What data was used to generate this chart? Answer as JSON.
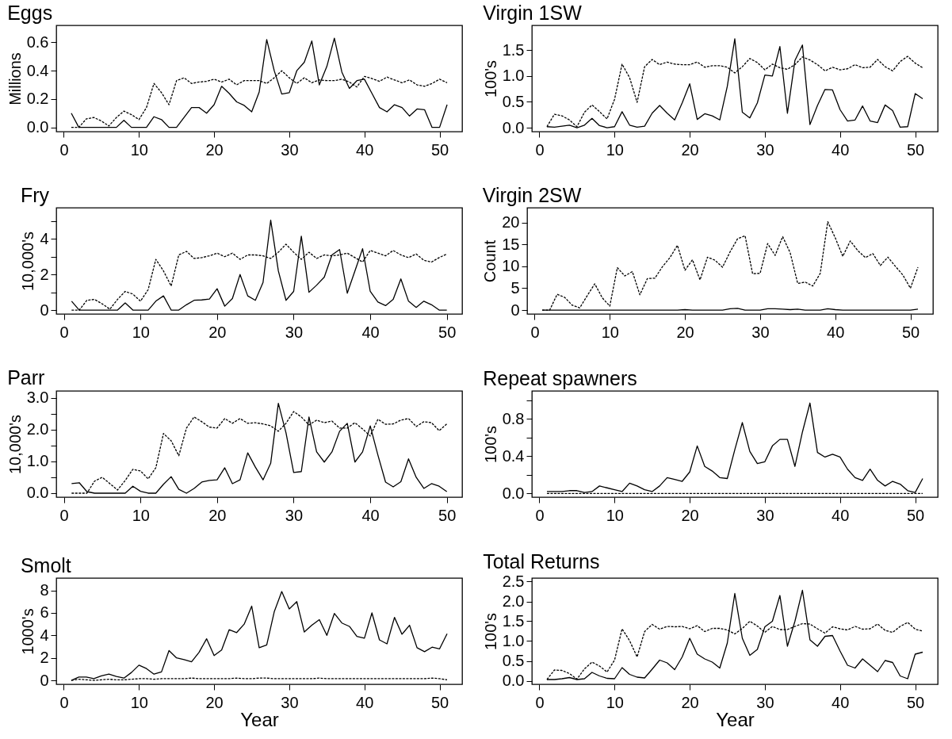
{
  "chart_data": [
    {
      "type": "line",
      "title": "Eggs",
      "ylabel": "Millions",
      "x": [
        1,
        2,
        3,
        4,
        5,
        6,
        7,
        8,
        9,
        10,
        11,
        12,
        13,
        14,
        15,
        16,
        17,
        18,
        19,
        20,
        21,
        22,
        23,
        24,
        25,
        26,
        27,
        28,
        29,
        30,
        31,
        32,
        33,
        34,
        35,
        36,
        37,
        38,
        39,
        40,
        41,
        42,
        43,
        44,
        45,
        46,
        47,
        48,
        49,
        50,
        51
      ],
      "xlim": [
        -1,
        53
      ],
      "xticks": [
        0,
        10,
        20,
        30,
        40,
        50
      ],
      "ylim": [
        -0.03,
        0.72
      ],
      "yticks": [
        {
          "value": 0,
          "label": "0.0"
        },
        0.2,
        0.4,
        0.6
      ],
      "grid": false,
      "series": [
        {
          "color": "#000000",
          "line_style": "solid",
          "values": [
            0.1,
            0,
            0,
            0,
            0,
            0,
            0,
            0.05,
            0,
            0,
            0,
            0.075,
            0.055,
            0,
            0,
            0.07,
            0.14,
            0.14,
            0.1,
            0.16,
            0.29,
            0.24,
            0.18,
            0.155,
            0.11,
            0.25,
            0.62,
            0.4,
            0.235,
            0.245,
            0.4,
            0.46,
            0.61,
            0.3,
            0.43,
            0.63,
            0.39,
            0.275,
            0.33,
            0.34,
            0.24,
            0.14,
            0.11,
            0.16,
            0.14,
            0.08,
            0.13,
            0.125,
            0,
            0,
            0.16
          ]
        },
        {
          "color": "#000000",
          "line_style": "dashed",
          "values": [
            0,
            0,
            0.06,
            0.07,
            0.045,
            0.01,
            0.07,
            0.115,
            0.09,
            0.055,
            0.14,
            0.31,
            0.245,
            0.16,
            0.33,
            0.35,
            0.31,
            0.32,
            0.325,
            0.34,
            0.32,
            0.34,
            0.3,
            0.33,
            0.33,
            0.33,
            0.31,
            0.35,
            0.4,
            0.35,
            0.31,
            0.35,
            0.315,
            0.335,
            0.33,
            0.33,
            0.34,
            0.32,
            0.285,
            0.36,
            0.345,
            0.325,
            0.355,
            0.335,
            0.315,
            0.335,
            0.3,
            0.29,
            0.31,
            0.34,
            0.315
          ]
        }
      ]
    },
    {
      "type": "line",
      "title": "Virgin 1SW",
      "ylabel": "100's",
      "x": [
        1,
        2,
        3,
        4,
        5,
        6,
        7,
        8,
        9,
        10,
        11,
        12,
        13,
        14,
        15,
        16,
        17,
        18,
        19,
        20,
        21,
        22,
        23,
        24,
        25,
        26,
        27,
        28,
        29,
        30,
        31,
        32,
        33,
        34,
        35,
        36,
        37,
        38,
        39,
        40,
        41,
        42,
        43,
        44,
        45,
        46,
        47,
        48,
        49,
        50,
        51
      ],
      "xlim": [
        -1,
        53
      ],
      "xticks": [
        0,
        10,
        20,
        30,
        40,
        50
      ],
      "ylim": [
        -0.076,
        1.98
      ],
      "yticks": [
        {
          "value": 0,
          "label": "0.0"
        },
        0.5,
        {
          "value": 1,
          "label": "1.0"
        },
        1.5
      ],
      "grid": false,
      "series": [
        {
          "color": "#000000",
          "line_style": "solid",
          "values": [
            0.02,
            0.01,
            0.03,
            0.05,
            0,
            0.05,
            0.18,
            0.04,
            0,
            0.02,
            0.31,
            0.05,
            0.01,
            0.03,
            0.28,
            0.43,
            0.28,
            0.15,
            0.48,
            0.85,
            0.16,
            0.27,
            0.23,
            0.15,
            0.8,
            1.72,
            0.3,
            0.19,
            0.48,
            1.02,
            1,
            1.57,
            0.28,
            1.3,
            1.6,
            0.06,
            0.43,
            0.74,
            0.73,
            0.35,
            0.13,
            0.15,
            0.42,
            0.13,
            0.1,
            0.44,
            0.33,
            0.01,
            0.02,
            0.66,
            0.56
          ]
        },
        {
          "color": "#000000",
          "line_style": "dashed",
          "values": [
            0.02,
            0.26,
            0.23,
            0.15,
            0.02,
            0.3,
            0.44,
            0.31,
            0.17,
            0.55,
            1.23,
            0.97,
            0.49,
            1.18,
            1.32,
            1.22,
            1.27,
            1.23,
            1.22,
            1.22,
            1.27,
            1.17,
            1.2,
            1.2,
            1.17,
            1.06,
            1.18,
            1.34,
            1.26,
            1.12,
            1.23,
            1.16,
            1.13,
            1.22,
            1.37,
            1.31,
            1.22,
            1.1,
            1.17,
            1.12,
            1.14,
            1.22,
            1.16,
            1.17,
            1.32,
            1.18,
            1.1,
            1.28,
            1.38,
            1.25,
            1.16
          ]
        }
      ]
    },
    {
      "type": "line",
      "title": "Fry",
      "ylabel": "10,000's",
      "x": [
        1,
        2,
        3,
        4,
        5,
        6,
        7,
        8,
        9,
        10,
        11,
        12,
        13,
        14,
        15,
        16,
        17,
        18,
        19,
        20,
        21,
        22,
        23,
        24,
        25,
        26,
        27,
        28,
        29,
        30,
        31,
        32,
        33,
        34,
        35,
        36,
        37,
        38,
        39,
        40,
        41,
        42,
        43,
        44,
        45,
        46,
        47,
        48,
        49,
        50
      ],
      "xlim": [
        -1,
        52
      ],
      "xticks": [
        0,
        10,
        20,
        30,
        40,
        50
      ],
      "ylim": [
        -0.22,
        5.75
      ],
      "yticks": [
        0,
        {
          "value": 1,
          "label": null
        },
        2,
        {
          "value": 3,
          "label": null
        },
        4,
        {
          "value": 5,
          "label": null
        }
      ],
      "grid": false,
      "series": [
        {
          "color": "#000000",
          "line_style": "solid",
          "values": [
            0.5,
            0,
            0,
            0,
            0,
            0,
            0,
            0.4,
            0,
            0,
            0,
            0.5,
            0.8,
            0,
            0,
            0.3,
            0.55,
            0.57,
            0.62,
            1.2,
            0.22,
            0.65,
            2,
            0.8,
            0.55,
            1.55,
            5.05,
            2.2,
            0.55,
            1.05,
            4.15,
            1,
            1.4,
            1.85,
            3.1,
            3.4,
            0.95,
            2.2,
            3.45,
            1.05,
            0.45,
            0.25,
            0.6,
            1.75,
            0.5,
            0.15,
            0.5,
            0.3,
            0,
            0
          ]
        },
        {
          "color": "#000000",
          "line_style": "dashed",
          "values": [
            0,
            0,
            0.55,
            0.6,
            0.35,
            0.05,
            0.6,
            1.05,
            0.9,
            0.5,
            1.15,
            2.85,
            2.2,
            1.35,
            3.1,
            3.3,
            2.9,
            2.95,
            3.05,
            3.2,
            3,
            3.2,
            2.85,
            3.1,
            3.1,
            3.05,
            2.9,
            3.25,
            3.7,
            3.25,
            2.85,
            3.25,
            2.9,
            3.1,
            3.05,
            3.1,
            3.2,
            2.95,
            2.7,
            3.35,
            3.2,
            3.05,
            3.35,
            3.1,
            2.95,
            3.15,
            2.8,
            2.7,
            2.95,
            3.15
          ]
        }
      ]
    },
    {
      "type": "line",
      "title": "Virgin 2SW",
      "ylabel": "Count",
      "x": [
        1,
        2,
        3,
        4,
        5,
        6,
        7,
        8,
        9,
        10,
        11,
        12,
        13,
        14,
        15,
        16,
        17,
        18,
        19,
        20,
        21,
        22,
        23,
        24,
        25,
        26,
        27,
        28,
        29,
        30,
        31,
        32,
        33,
        34,
        35,
        36,
        37,
        38,
        39,
        40,
        41,
        42,
        43,
        44,
        45,
        46,
        47,
        48,
        49,
        50,
        51
      ],
      "xlim": [
        -1,
        53
      ],
      "xticks": [
        0,
        10,
        20,
        30,
        40,
        50
      ],
      "ylim": [
        -0.9,
        23.4
      ],
      "yticks": [
        0,
        5,
        10,
        15,
        20
      ],
      "grid": false,
      "series": [
        {
          "color": "#000000",
          "line_style": "solid",
          "values": [
            0,
            0,
            0,
            0,
            0,
            0,
            0,
            0,
            0,
            0,
            0,
            0,
            0,
            0,
            0,
            0,
            0,
            0,
            0,
            0.1,
            0,
            0,
            0,
            0,
            0,
            0.3,
            0.4,
            0,
            0,
            0,
            0.3,
            0.3,
            0.2,
            0.1,
            0.2,
            0,
            0,
            0,
            0.3,
            0.1,
            0,
            0,
            0,
            0,
            0,
            0,
            0,
            0,
            0,
            0,
            0.2
          ]
        },
        {
          "color": "#000000",
          "line_style": "dashed",
          "values": [
            0,
            0,
            3.6,
            2.9,
            1.1,
            0.5,
            3.3,
            6,
            2.8,
            0.9,
            9.7,
            7.8,
            8.8,
            3.5,
            7.2,
            7.3,
            9.9,
            12,
            14.8,
            9.1,
            11.5,
            6.9,
            12.1,
            11.4,
            9.8,
            13.3,
            16.3,
            17,
            8.3,
            8.4,
            15.2,
            12.5,
            16.8,
            13.1,
            6.1,
            6.4,
            5.5,
            8.4,
            20.2,
            16.5,
            12.3,
            15.8,
            13.6,
            12,
            12.9,
            10.2,
            12.1,
            10,
            8,
            5,
            9.8
          ]
        }
      ]
    },
    {
      "type": "line",
      "title": "Parr",
      "ylabel": "10,000's",
      "x": [
        1,
        2,
        3,
        4,
        5,
        6,
        7,
        8,
        9,
        10,
        11,
        12,
        13,
        14,
        15,
        16,
        17,
        18,
        19,
        20,
        21,
        22,
        23,
        24,
        25,
        26,
        27,
        28,
        29,
        30,
        31,
        32,
        33,
        34,
        35,
        36,
        37,
        38,
        39,
        40,
        41,
        42,
        43,
        44,
        45,
        46,
        47,
        48,
        49,
        50
      ],
      "xlim": [
        -1,
        52
      ],
      "xticks": [
        0,
        10,
        20,
        30,
        40,
        50
      ],
      "ylim": [
        -0.125,
        3.22
      ],
      "yticks": [
        {
          "value": 0,
          "label": "0.0"
        },
        {
          "value": 0.5,
          "label": null
        },
        {
          "value": 1,
          "label": "1.0"
        },
        {
          "value": 1.5,
          "label": null
        },
        {
          "value": 2,
          "label": "2.0"
        },
        {
          "value": 2.5,
          "label": null
        },
        {
          "value": 3,
          "label": "3.0"
        }
      ],
      "grid": false,
      "series": [
        {
          "color": "#000000",
          "line_style": "solid",
          "values": [
            0.3,
            0.33,
            0.05,
            0,
            0,
            0,
            0,
            0,
            0.22,
            0.06,
            0,
            0,
            0.28,
            0.52,
            0.12,
            0,
            0.15,
            0.35,
            0.4,
            0.42,
            0.8,
            0.3,
            0.42,
            1.27,
            0.82,
            0.42,
            0.94,
            2.83,
            1.9,
            0.65,
            0.68,
            2.4,
            1.3,
            0.98,
            1.3,
            1.95,
            2.2,
            0.98,
            1.3,
            2.12,
            1.2,
            0.35,
            0.2,
            0.36,
            1.08,
            0.5,
            0.15,
            0.3,
            0.22,
            0.05
          ]
        },
        {
          "color": "#000000",
          "line_style": "dashed",
          "values": [
            0,
            0,
            0,
            0.38,
            0.5,
            0.3,
            0.1,
            0.4,
            0.75,
            0.7,
            0.45,
            0.8,
            1.88,
            1.65,
            1.18,
            2.05,
            2.4,
            2.25,
            2.08,
            2.05,
            2.35,
            2.2,
            2.35,
            2.2,
            2.22,
            2.18,
            2.12,
            1.95,
            2.2,
            2.57,
            2.4,
            2.15,
            2.3,
            2.22,
            2.27,
            2.05,
            2.05,
            2.22,
            2.02,
            1.8,
            2.33,
            2.17,
            2.18,
            2.3,
            2.35,
            2.1,
            2.25,
            2.22,
            1.97,
            2.18
          ]
        }
      ]
    },
    {
      "type": "line",
      "title": "Repeat spawners",
      "ylabel": "100's",
      "x": [
        1,
        2,
        3,
        4,
        5,
        6,
        7,
        8,
        9,
        10,
        11,
        12,
        13,
        14,
        15,
        16,
        17,
        18,
        19,
        20,
        21,
        22,
        23,
        24,
        25,
        26,
        27,
        28,
        29,
        30,
        31,
        32,
        33,
        34,
        35,
        36,
        37,
        38,
        39,
        40,
        41,
        42,
        43,
        44,
        45,
        46,
        47,
        48,
        49,
        50,
        51
      ],
      "xlim": [
        -1,
        53
      ],
      "xticks": [
        0,
        10,
        20,
        30,
        40,
        50
      ],
      "ylim": [
        -0.04,
        1.1
      ],
      "yticks": [
        {
          "value": 0,
          "label": "0.0"
        },
        {
          "value": 0.2,
          "label": null
        },
        0.4,
        {
          "value": 0.6,
          "label": null
        },
        0.8,
        {
          "value": 1,
          "label": null
        }
      ],
      "grid": false,
      "series": [
        {
          "color": "#000000",
          "line_style": "solid",
          "values": [
            0.02,
            0.02,
            0.02,
            0.03,
            0.03,
            0.01,
            0.02,
            0.08,
            0.06,
            0.04,
            0.02,
            0.11,
            0.08,
            0.04,
            0.02,
            0.08,
            0.17,
            0.15,
            0.13,
            0.23,
            0.51,
            0.29,
            0.24,
            0.17,
            0.16,
            0.47,
            0.76,
            0.45,
            0.32,
            0.34,
            0.51,
            0.58,
            0.58,
            0.29,
            0.66,
            0.97,
            0.44,
            0.39,
            0.42,
            0.39,
            0.26,
            0.17,
            0.14,
            0.26,
            0.14,
            0.08,
            0.13,
            0.1,
            0.03,
            0.01,
            0.16
          ]
        },
        {
          "color": "#000000",
          "line_style": "dashed",
          "values": [
            0,
            0,
            0,
            0,
            0,
            0,
            0,
            0,
            0,
            0,
            0,
            0,
            0,
            0,
            0,
            0,
            0,
            0,
            0,
            0,
            0,
            0,
            0,
            0,
            0,
            0,
            0,
            0,
            0,
            0,
            0,
            0,
            0,
            0,
            0,
            0,
            0,
            0,
            0,
            0,
            0,
            0,
            0,
            0,
            0,
            0,
            0,
            0,
            0,
            0,
            0
          ]
        }
      ]
    },
    {
      "type": "line",
      "title": "Smolt",
      "ylabel": "1000's",
      "xlabel": "Year",
      "x": [
        1,
        2,
        3,
        4,
        5,
        6,
        7,
        8,
        9,
        10,
        11,
        12,
        13,
        14,
        15,
        16,
        17,
        18,
        19,
        20,
        21,
        22,
        23,
        24,
        25,
        26,
        27,
        28,
        29,
        30,
        31,
        32,
        33,
        34,
        35,
        36,
        37,
        38,
        39,
        40,
        41,
        42,
        43,
        44,
        45,
        46,
        47,
        48,
        49,
        50,
        51
      ],
      "xlim": [
        -1,
        53
      ],
      "xticks": [
        0,
        10,
        20,
        30,
        40,
        50
      ],
      "ylim": [
        -0.35,
        9.1
      ],
      "yticks": [
        0,
        2,
        4,
        6,
        8
      ],
      "grid": false,
      "series": [
        {
          "color": "#000000",
          "line_style": "solid",
          "values": [
            0,
            0.3,
            0.3,
            0.15,
            0.4,
            0.55,
            0.35,
            0.2,
            0.7,
            1.35,
            1.05,
            0.55,
            0.75,
            2.65,
            2,
            1.85,
            1.65,
            2.5,
            3.7,
            2.2,
            2.7,
            4.5,
            4.25,
            5,
            6.6,
            2.9,
            3.15,
            6.1,
            7.9,
            6.35,
            7,
            4.3,
            4.9,
            5.4,
            4,
            5.95,
            5.1,
            4.8,
            3.9,
            3.75,
            6,
            3.6,
            3.25,
            5.6,
            4.1,
            4.9,
            2.9,
            2.55,
            2.95,
            2.8,
            4.15
          ]
        },
        {
          "color": "#000000",
          "line_style": "dashed",
          "values": [
            0,
            0.1,
            0.05,
            0,
            0.05,
            0.1,
            0.05,
            0.05,
            0.1,
            0.15,
            0.15,
            0.1,
            0.15,
            0.15,
            0.15,
            0.15,
            0.2,
            0.15,
            0.15,
            0.15,
            0.15,
            0.15,
            0.2,
            0.15,
            0.15,
            0.2,
            0.2,
            0.15,
            0.15,
            0.15,
            0.15,
            0.15,
            0.15,
            0.2,
            0.15,
            0.15,
            0.15,
            0.15,
            0.15,
            0.15,
            0.15,
            0.15,
            0.15,
            0.15,
            0.15,
            0.15,
            0.15,
            0.15,
            0.2,
            0.15,
            0.05
          ]
        }
      ]
    },
    {
      "type": "line",
      "title": "Total Returns",
      "ylabel": "100's",
      "xlabel": "Year",
      "x": [
        1,
        2,
        3,
        4,
        5,
        6,
        7,
        8,
        9,
        10,
        11,
        12,
        13,
        14,
        15,
        16,
        17,
        18,
        19,
        20,
        21,
        22,
        23,
        24,
        25,
        26,
        27,
        28,
        29,
        30,
        31,
        32,
        33,
        34,
        35,
        36,
        37,
        38,
        39,
        40,
        41,
        42,
        43,
        44,
        45,
        46,
        47,
        48,
        49,
        50,
        51
      ],
      "xlim": [
        -1,
        53
      ],
      "xticks": [
        0,
        10,
        20,
        30,
        40,
        50
      ],
      "ylim": [
        -0.09,
        2.59
      ],
      "yticks": [
        {
          "value": 0,
          "label": "0.0"
        },
        0.5,
        {
          "value": 1,
          "label": "1.0"
        },
        1.5,
        {
          "value": 2,
          "label": "2.0"
        },
        2.5
      ],
      "grid": false,
      "series": [
        {
          "color": "#000000",
          "line_style": "solid",
          "values": [
            0.03,
            0.03,
            0.05,
            0.08,
            0.03,
            0.05,
            0.21,
            0.12,
            0.06,
            0.05,
            0.33,
            0.16,
            0.09,
            0.07,
            0.29,
            0.52,
            0.45,
            0.28,
            0.6,
            1.07,
            0.67,
            0.55,
            0.47,
            0.32,
            0.95,
            2.2,
            1.07,
            0.64,
            0.79,
            1.36,
            1.5,
            2.15,
            0.87,
            1.5,
            2.28,
            1.03,
            0.87,
            1.12,
            1.14,
            0.75,
            0.39,
            0.32,
            0.55,
            0.39,
            0.23,
            0.51,
            0.46,
            0.12,
            0.05,
            0.67,
            0.72
          ]
        },
        {
          "color": "#000000",
          "line_style": "dashed",
          "values": [
            0.03,
            0.27,
            0.26,
            0.18,
            0.04,
            0.3,
            0.47,
            0.37,
            0.22,
            0.52,
            1.31,
            1.01,
            0.6,
            1.24,
            1.42,
            1.3,
            1.37,
            1.36,
            1.37,
            1.31,
            1.39,
            1.24,
            1.32,
            1.32,
            1.28,
            1.18,
            1.32,
            1.5,
            1.38,
            1.22,
            1.37,
            1.29,
            1.29,
            1.37,
            1.44,
            1.43,
            1.31,
            1.2,
            1.36,
            1.31,
            1.28,
            1.37,
            1.3,
            1.31,
            1.43,
            1.27,
            1.22,
            1.37,
            1.47,
            1.3,
            1.25
          ]
        }
      ]
    }
  ]
}
